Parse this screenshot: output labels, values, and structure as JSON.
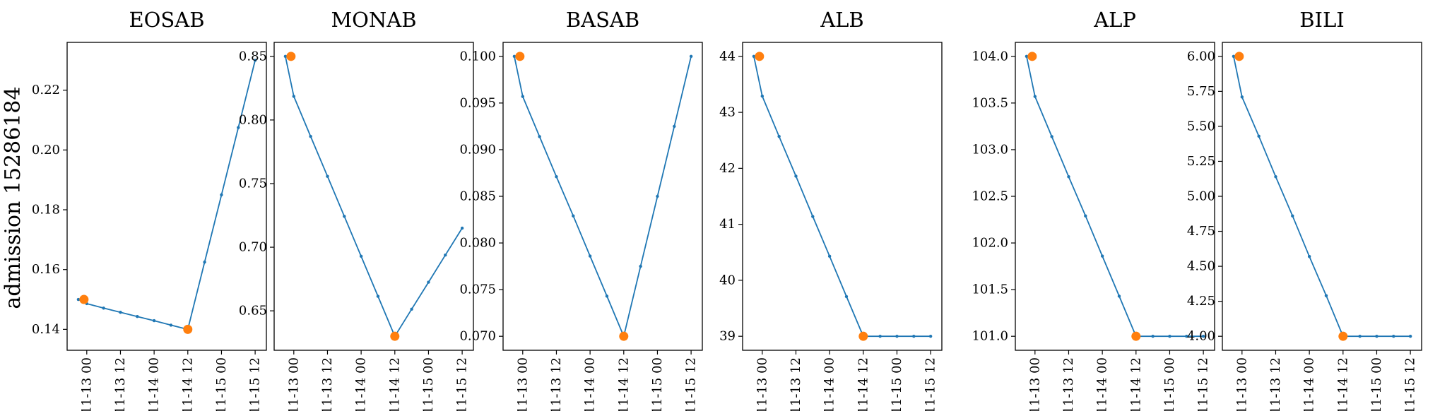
{
  "figure": {
    "row_label": "admission 15286184",
    "colors": {
      "line": "#1f77b4",
      "marker": "#ff7f0e"
    }
  },
  "chart_data": [
    {
      "type": "line",
      "title": "EOSAB",
      "x_ticks": [
        "11-13 00",
        "11-13 12",
        "11-14 00",
        "11-14 12",
        "11-15 00",
        "11-15 12"
      ],
      "y_ticks": [
        "0.14",
        "0.16",
        "0.18",
        "0.20",
        "0.22"
      ],
      "ylim": [
        0.133,
        0.236
      ],
      "x": [
        "11-12 21",
        "11-13 00",
        "11-13 06",
        "11-13 12",
        "11-13 18",
        "11-14 00",
        "11-14 06",
        "11-14 12",
        "11-14 18",
        "11-15 00",
        "11-15 06",
        "11-15 12"
      ],
      "y": [
        0.15,
        0.1486,
        0.1471,
        0.1457,
        0.1443,
        0.1429,
        0.1414,
        0.14,
        0.1625,
        0.185,
        0.2075,
        0.23
      ],
      "highlighted_points": [
        {
          "x": "11-12 23",
          "y": 0.15
        },
        {
          "x": "11-14 12",
          "y": 0.14
        }
      ]
    },
    {
      "type": "line",
      "title": "MONAB",
      "x_ticks": [
        "11-13 00",
        "11-13 12",
        "11-14 00",
        "11-14 12",
        "11-15 00",
        "11-15 12"
      ],
      "y_ticks": [
        "0.65",
        "0.70",
        "0.75",
        "0.80",
        "0.85"
      ],
      "ylim": [
        0.619,
        0.861
      ],
      "x": [
        "11-12 21",
        "11-13 00",
        "11-13 06",
        "11-13 12",
        "11-13 18",
        "11-14 00",
        "11-14 06",
        "11-14 12",
        "11-14 18",
        "11-15 00",
        "11-15 06",
        "11-15 12"
      ],
      "y": [
        0.85,
        0.8186,
        0.7871,
        0.7557,
        0.7243,
        0.6929,
        0.6614,
        0.63,
        0.6513,
        0.6725,
        0.6938,
        0.715
      ],
      "highlighted_points": [
        {
          "x": "11-12 23",
          "y": 0.85
        },
        {
          "x": "11-14 12",
          "y": 0.63
        }
      ]
    },
    {
      "type": "line",
      "title": "BASAB",
      "x_ticks": [
        "11-13 00",
        "11-13 12",
        "11-14 00",
        "11-14 12",
        "11-15 00",
        "11-15 12"
      ],
      "y_ticks": [
        "0.070",
        "0.075",
        "0.080",
        "0.085",
        "0.090",
        "0.095",
        "0.100"
      ],
      "ylim": [
        0.0685,
        0.1015
      ],
      "x": [
        "11-12 21",
        "11-13 00",
        "11-13 06",
        "11-13 12",
        "11-13 18",
        "11-14 00",
        "11-14 06",
        "11-14 12",
        "11-14 18",
        "11-15 00",
        "11-15 06",
        "11-15 12"
      ],
      "y": [
        0.1,
        0.0957,
        0.0914,
        0.0871,
        0.0829,
        0.0786,
        0.0743,
        0.07,
        0.0775,
        0.085,
        0.0925,
        0.1
      ],
      "highlighted_points": [
        {
          "x": "11-12 23",
          "y": 0.1
        },
        {
          "x": "11-14 12",
          "y": 0.07
        }
      ]
    },
    {
      "type": "line",
      "title": "ALB",
      "x_ticks": [
        "11-13 00",
        "11-13 12",
        "11-14 00",
        "11-14 12",
        "11-15 00",
        "11-15 12"
      ],
      "y_ticks": [
        "39",
        "40",
        "41",
        "42",
        "43",
        "44"
      ],
      "ylim": [
        38.75,
        44.25
      ],
      "x": [
        "11-12 21",
        "11-13 00",
        "11-13 06",
        "11-13 12",
        "11-13 18",
        "11-14 00",
        "11-14 06",
        "11-14 12",
        "11-14 18",
        "11-15 00",
        "11-15 06",
        "11-15 12"
      ],
      "y": [
        44.0,
        43.29,
        42.57,
        41.86,
        41.14,
        40.43,
        39.71,
        39.0,
        39.0,
        39.0,
        39.0,
        39.0
      ],
      "highlighted_points": [
        {
          "x": "11-12 23",
          "y": 44.0
        },
        {
          "x": "11-14 12",
          "y": 39.0
        }
      ]
    },
    {
      "type": "line",
      "title": "ALP",
      "x_ticks": [
        "11-13 00",
        "11-13 12",
        "11-14 00",
        "11-14 12",
        "11-15 00",
        "11-15 12"
      ],
      "y_ticks": [
        "101.0",
        "101.5",
        "102.0",
        "102.5",
        "103.0",
        "103.5",
        "104.0"
      ],
      "ylim": [
        100.85,
        104.15
      ],
      "x": [
        "11-12 21",
        "11-13 00",
        "11-13 06",
        "11-13 12",
        "11-13 18",
        "11-14 00",
        "11-14 06",
        "11-14 12",
        "11-14 18",
        "11-15 00",
        "11-15 06",
        "11-15 12"
      ],
      "y": [
        104.0,
        103.57,
        103.14,
        102.71,
        102.29,
        101.86,
        101.43,
        101.0,
        101.0,
        101.0,
        101.0,
        101.0
      ],
      "highlighted_points": [
        {
          "x": "11-12 23",
          "y": 104.0
        },
        {
          "x": "11-14 12",
          "y": 101.0
        }
      ]
    },
    {
      "type": "line",
      "title": "BILI",
      "x_ticks": [
        "11-13 00",
        "11-13 12",
        "11-14 00",
        "11-14 12",
        "11-15 00",
        "11-15 12"
      ],
      "y_ticks": [
        "4.00",
        "4.25",
        "4.50",
        "4.75",
        "5.00",
        "5.25",
        "5.50",
        "5.75",
        "6.00"
      ],
      "ylim": [
        3.9,
        6.1
      ],
      "x": [
        "11-12 21",
        "11-13 00",
        "11-13 06",
        "11-13 12",
        "11-13 18",
        "11-14 00",
        "11-14 06",
        "11-14 12",
        "11-14 18",
        "11-15 00",
        "11-15 06",
        "11-15 12"
      ],
      "y": [
        6.0,
        5.71,
        5.43,
        5.14,
        4.86,
        4.57,
        4.29,
        4.0,
        4.0,
        4.0,
        4.0,
        4.0
      ],
      "highlighted_points": [
        {
          "x": "11-12 23",
          "y": 6.0
        },
        {
          "x": "11-14 12",
          "y": 4.0
        }
      ]
    }
  ]
}
